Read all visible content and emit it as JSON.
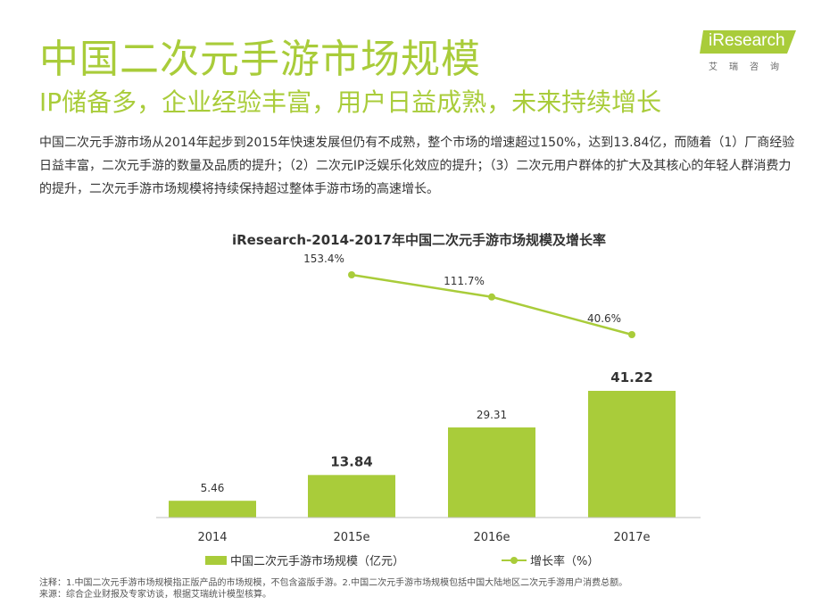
{
  "header": {
    "title": "中国二次元手游市场规模",
    "subtitle": "IP储备多，企业经验丰富，用户日益成熟，未来持续增长"
  },
  "logo": {
    "word": "iResearch",
    "cn": "艾瑞咨询"
  },
  "description": "中国二次元手游市场从2014年起步到2015年快速发展但仍有不成熟，整个市场的增速超过150%，达到13.84亿，而随着（1）厂商经验日益丰富，二次元手游的数量及品质的提升；（2）二次元IP泛娱乐化效应的提升；（3）二次元用户群体的扩大及其核心的年轻人群消费力的提升，二次元手游市场规模将持续保持超过整体手游市场的高速增长。",
  "colors": {
    "accent": "#a9cc3a",
    "text": "#333333"
  },
  "chart_data": {
    "type": "bar",
    "title": "iResearch-2014-2017年中国二次元手游市场规模及增长率",
    "categories": [
      "2014",
      "2015e",
      "2016e",
      "2017e"
    ],
    "series": [
      {
        "name": "中国二次元手游市场规模（亿元）",
        "type": "bar",
        "values": [
          5.46,
          13.84,
          29.31,
          41.22
        ],
        "labels": [
          "5.46",
          "13.84",
          "29.31",
          "41.22"
        ],
        "bold_labels": [
          false,
          true,
          false,
          true
        ]
      },
      {
        "name": "增长率（%）",
        "type": "line",
        "x": [
          "2015e",
          "2016e",
          "2017e"
        ],
        "values": [
          153.4,
          111.7,
          40.6
        ],
        "labels": [
          "153.4%",
          "111.7%",
          "40.6%"
        ]
      }
    ],
    "legend_position": "bottom",
    "grid": false
  },
  "notes": {
    "line1": "注释：1.中国二次元手游市场规模指正版产品的市场规模，不包含盗版手游。2.中国二次元手游市场规模包括中国大陆地区二次元手游用户消费总额。",
    "line2": "来源：综合企业财报及专家访谈，根据艾瑞统计模型核算。"
  }
}
